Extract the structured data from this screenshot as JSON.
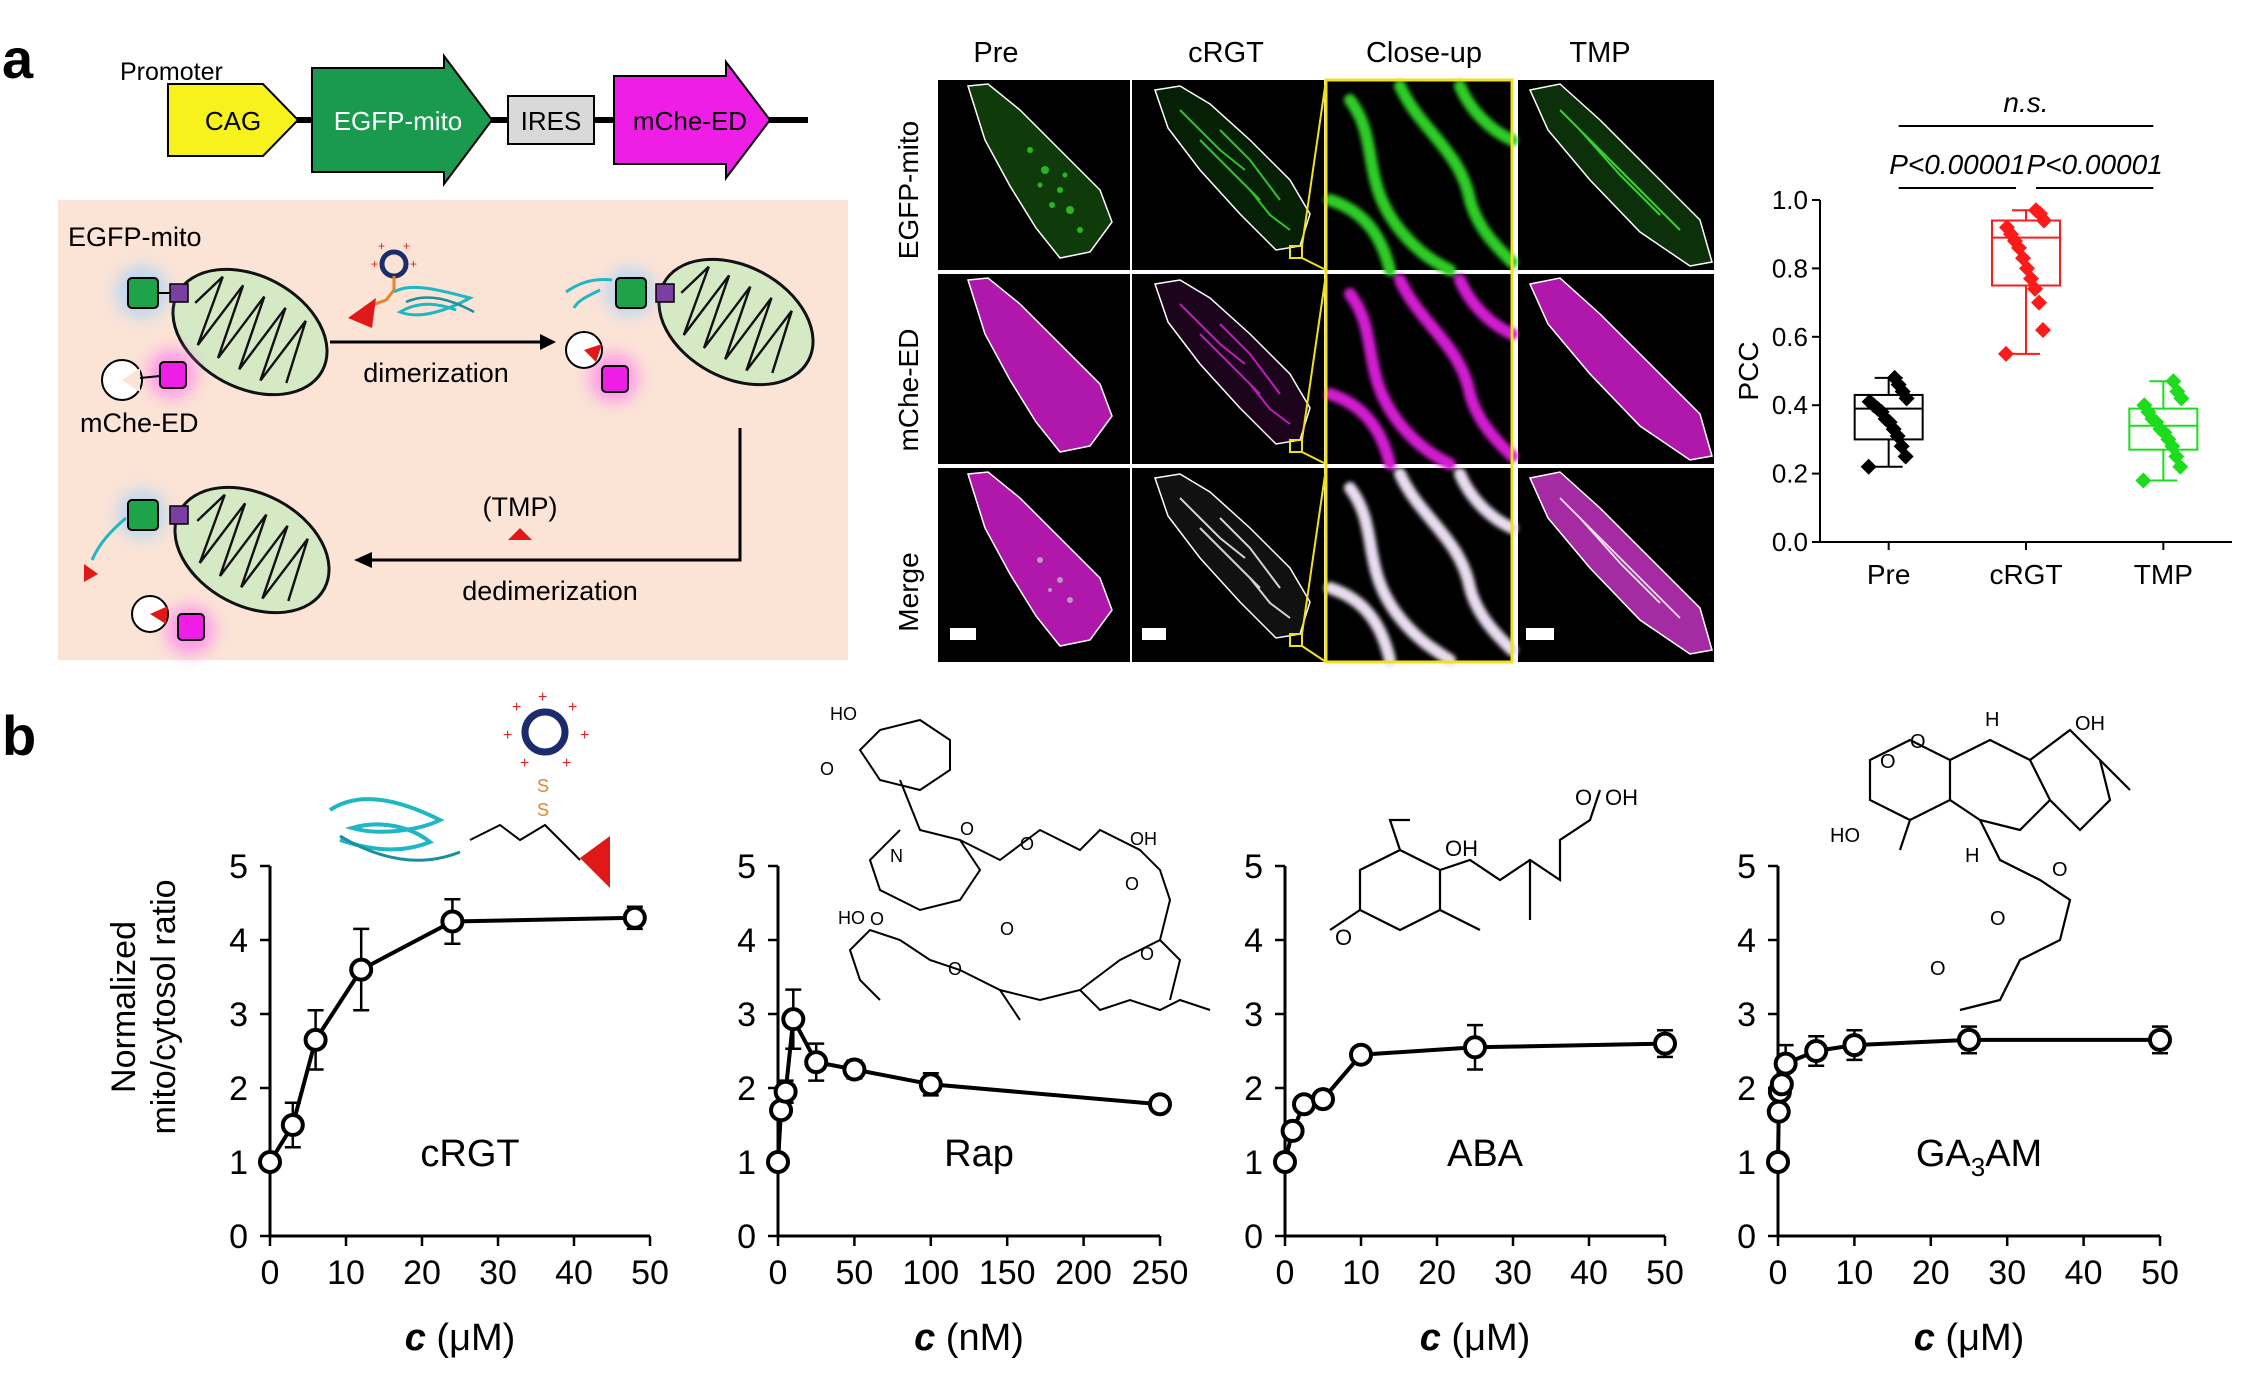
{
  "panel_a": {
    "label": "a",
    "construct": {
      "promoter_label": "Promoter",
      "parts": [
        {
          "label": "CAG",
          "color": "#f7f21b"
        },
        {
          "label": "EGFP-mito",
          "color": "#1a9a4e"
        },
        {
          "label": "IRES",
          "color": "#d9d9d9"
        },
        {
          "label": "mChe-ED",
          "color": "#ee1ee6"
        }
      ]
    },
    "scheme": {
      "background": "#fbe3d6",
      "egfp_label": "EGFP-mito",
      "mche_label": "mChe-ED",
      "dimerization_label": "dimerization",
      "tmp_label": "(TMP)",
      "dedimerization_label": "dedimerization"
    },
    "micrographs": {
      "column_labels": [
        "Pre",
        "cRGT",
        "Close-up",
        "TMP"
      ],
      "row_labels": [
        "EGFP-mito",
        "mChe-ED",
        "Merge"
      ],
      "channel_colors": {
        "egfp": "#2ecc27",
        "mche": "#d21ed0",
        "merge": "#e8dcef"
      }
    },
    "pcc_chart": {
      "chart_data": {
        "type": "box",
        "ylabel": "PCC",
        "ylim": [
          0.0,
          1.0
        ],
        "yticks": [
          "0.0",
          "0.2",
          "0.4",
          "0.6",
          "0.8",
          "1.0"
        ],
        "categories": [
          "Pre",
          "cRGT",
          "TMP"
        ],
        "colors": [
          "#000000",
          "#ff1a1a",
          "#1ddc1d"
        ],
        "boxes": [
          {
            "min": 0.22,
            "q1": 0.3,
            "median": 0.39,
            "q3": 0.43,
            "max": 0.48,
            "points": [
              0.22,
              0.25,
              0.28,
              0.31,
              0.33,
              0.35,
              0.36,
              0.38,
              0.39,
              0.4,
              0.41,
              0.42,
              0.44,
              0.46,
              0.48
            ]
          },
          {
            "min": 0.55,
            "q1": 0.75,
            "median": 0.89,
            "q3": 0.94,
            "max": 0.97,
            "points": [
              0.55,
              0.62,
              0.7,
              0.74,
              0.77,
              0.8,
              0.83,
              0.86,
              0.88,
              0.9,
              0.92,
              0.94,
              0.96,
              0.97
            ]
          },
          {
            "min": 0.18,
            "q1": 0.27,
            "median": 0.34,
            "q3": 0.39,
            "max": 0.47,
            "points": [
              0.18,
              0.22,
              0.25,
              0.28,
              0.3,
              0.32,
              0.33,
              0.35,
              0.36,
              0.38,
              0.4,
              0.42,
              0.44,
              0.47
            ]
          }
        ],
        "annotations": [
          {
            "text": "n.s.",
            "from": 0,
            "to": 2
          },
          {
            "text": "P<0.00001",
            "from": 0,
            "to": 1
          },
          {
            "text": "P<0.00001",
            "from": 1,
            "to": 2
          }
        ]
      }
    }
  },
  "panel_b": {
    "label": "b",
    "ylabel_line1": "Normalized",
    "ylabel_line2": "mito/cytosol ratio",
    "chart_data": [
      {
        "type": "line",
        "name_label": "cRGT",
        "xlabel_var": "c",
        "xlabel_unit": " (μM)",
        "xlim": [
          0,
          50
        ],
        "xticks": [
          0,
          10,
          20,
          30,
          40,
          50
        ],
        "ylim": [
          0,
          5
        ],
        "yticks": [
          0,
          1,
          2,
          3,
          4,
          5
        ],
        "x": [
          0,
          3,
          6,
          12,
          24,
          48
        ],
        "y": [
          1.0,
          1.5,
          2.65,
          3.6,
          4.25,
          4.3
        ],
        "err": [
          0,
          0.3,
          0.4,
          0.55,
          0.3,
          0.15
        ]
      },
      {
        "type": "line",
        "name_label": "Rap",
        "xlabel_var": "c",
        "xlabel_unit": " (nM)",
        "xlim": [
          0,
          250
        ],
        "xticks": [
          0,
          50,
          100,
          150,
          200,
          250
        ],
        "ylim": [
          0,
          5
        ],
        "yticks": [
          0,
          1,
          2,
          3,
          4,
          5
        ],
        "x": [
          0,
          2,
          5,
          10,
          25,
          50,
          100,
          250
        ],
        "y": [
          1.0,
          1.7,
          1.95,
          2.93,
          2.35,
          2.25,
          2.05,
          1.78
        ],
        "err": [
          0,
          0.1,
          0.15,
          0.4,
          0.25,
          0.12,
          0.15,
          0.07
        ]
      },
      {
        "type": "line",
        "name_label": "ABA",
        "xlabel_var": "c",
        "xlabel_unit": " (μM)",
        "xlim": [
          0,
          50
        ],
        "xticks": [
          0,
          10,
          20,
          30,
          40,
          50
        ],
        "ylim": [
          0,
          5
        ],
        "yticks": [
          0,
          1,
          2,
          3,
          4,
          5
        ],
        "x": [
          0,
          1,
          2.5,
          5,
          10,
          25,
          50
        ],
        "y": [
          1.0,
          1.42,
          1.78,
          1.85,
          2.45,
          2.55,
          2.6
        ],
        "err": [
          0,
          0.07,
          0.08,
          0.08,
          0.08,
          0.3,
          0.18
        ]
      },
      {
        "type": "line",
        "name_label": "GA",
        "name_sub": "3",
        "name_suffix": "AM",
        "xlabel_var": "c",
        "xlabel_unit": " (μM)",
        "xlim": [
          0,
          50
        ],
        "xticks": [
          0,
          10,
          20,
          30,
          40,
          50
        ],
        "ylim": [
          0,
          5
        ],
        "yticks": [
          0,
          1,
          2,
          3,
          4,
          5
        ],
        "x": [
          0,
          0.1,
          0.25,
          0.5,
          1,
          5,
          10,
          25,
          50
        ],
        "y": [
          1.0,
          1.68,
          1.95,
          2.05,
          2.33,
          2.5,
          2.58,
          2.65,
          2.65
        ],
        "err": [
          0,
          0.08,
          0.08,
          0.1,
          0.25,
          0.2,
          0.2,
          0.18,
          0.18
        ]
      }
    ],
    "structure_labels": {
      "rap": [
        "HO",
        "O",
        "O",
        "OH",
        "N",
        "O",
        "O",
        "O",
        "O",
        "HO",
        "O",
        "O",
        "O",
        "O"
      ],
      "aba": [
        "O",
        "OH",
        "O",
        "OH"
      ],
      "ga3am": [
        "H",
        "OH",
        "O",
        "O",
        "HO",
        "H",
        "O",
        "O",
        "O"
      ]
    }
  }
}
